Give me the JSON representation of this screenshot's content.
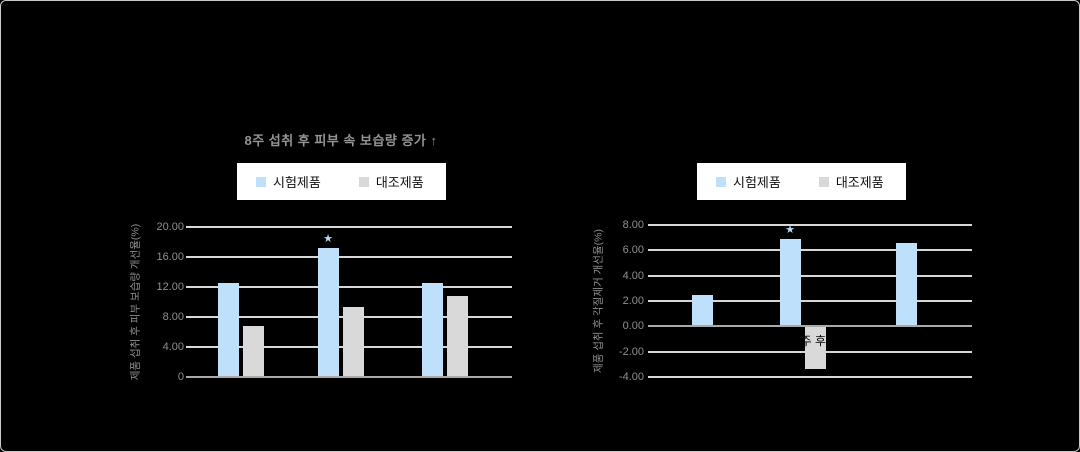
{
  "canvas": {
    "background": "#000000",
    "border_color": "#c9c9c9"
  },
  "chart_data": [
    {
      "type": "bar",
      "title": "8주 섭취 후 피부 속 보습량 증가 ↑",
      "ylabel": "제품 섭취 후 피부 보습량 개선율(%)",
      "xlabel": "",
      "categories": [
        "",
        "",
        ""
      ],
      "series": [
        {
          "name": "시험제품",
          "color": "#bfe0fa",
          "values": [
            12.6,
            17.2,
            12.6
          ]
        },
        {
          "name": "대조제품",
          "color": "#d9d9d9",
          "values": [
            6.8,
            9.3,
            10.8
          ]
        }
      ],
      "ylim": [
        0,
        20
      ],
      "yticks": {
        "labels": [
          "20.00",
          "16.00",
          "12.00",
          "8.00",
          "4.00",
          "0"
        ],
        "values": [
          20,
          16,
          12,
          8,
          4,
          0
        ]
      },
      "annotations": [
        {
          "category_index": 1,
          "series_index": 0,
          "text": "★",
          "color": "#b7dcf8"
        }
      ],
      "legend_position": "top",
      "grid": true
    },
    {
      "type": "bar",
      "title": "",
      "ylabel": "제품 섭취 후 각질제거 개선율(%)",
      "xlabel": "",
      "categories": [
        "",
        "8주 후",
        ""
      ],
      "series": [
        {
          "name": "시험제품",
          "color": "#bfe0fa",
          "values": [
            2.5,
            6.9,
            6.6
          ]
        },
        {
          "name": "대조제품",
          "color": "#d9d9d9",
          "values": [
            0,
            -3.4,
            0
          ]
        }
      ],
      "ylim": [
        -4,
        8
      ],
      "yticks": {
        "labels": [
          "8.00",
          "6.00",
          "4.00",
          "2.00",
          "0.00",
          "-2.00",
          "-4.00"
        ],
        "values": [
          8,
          6,
          4,
          2,
          0,
          -2,
          -4
        ]
      },
      "annotations": [
        {
          "category_index": 1,
          "series_index": 0,
          "text": "★",
          "color": "#b7dcf8"
        }
      ],
      "legend_position": "top",
      "grid": true
    }
  ]
}
